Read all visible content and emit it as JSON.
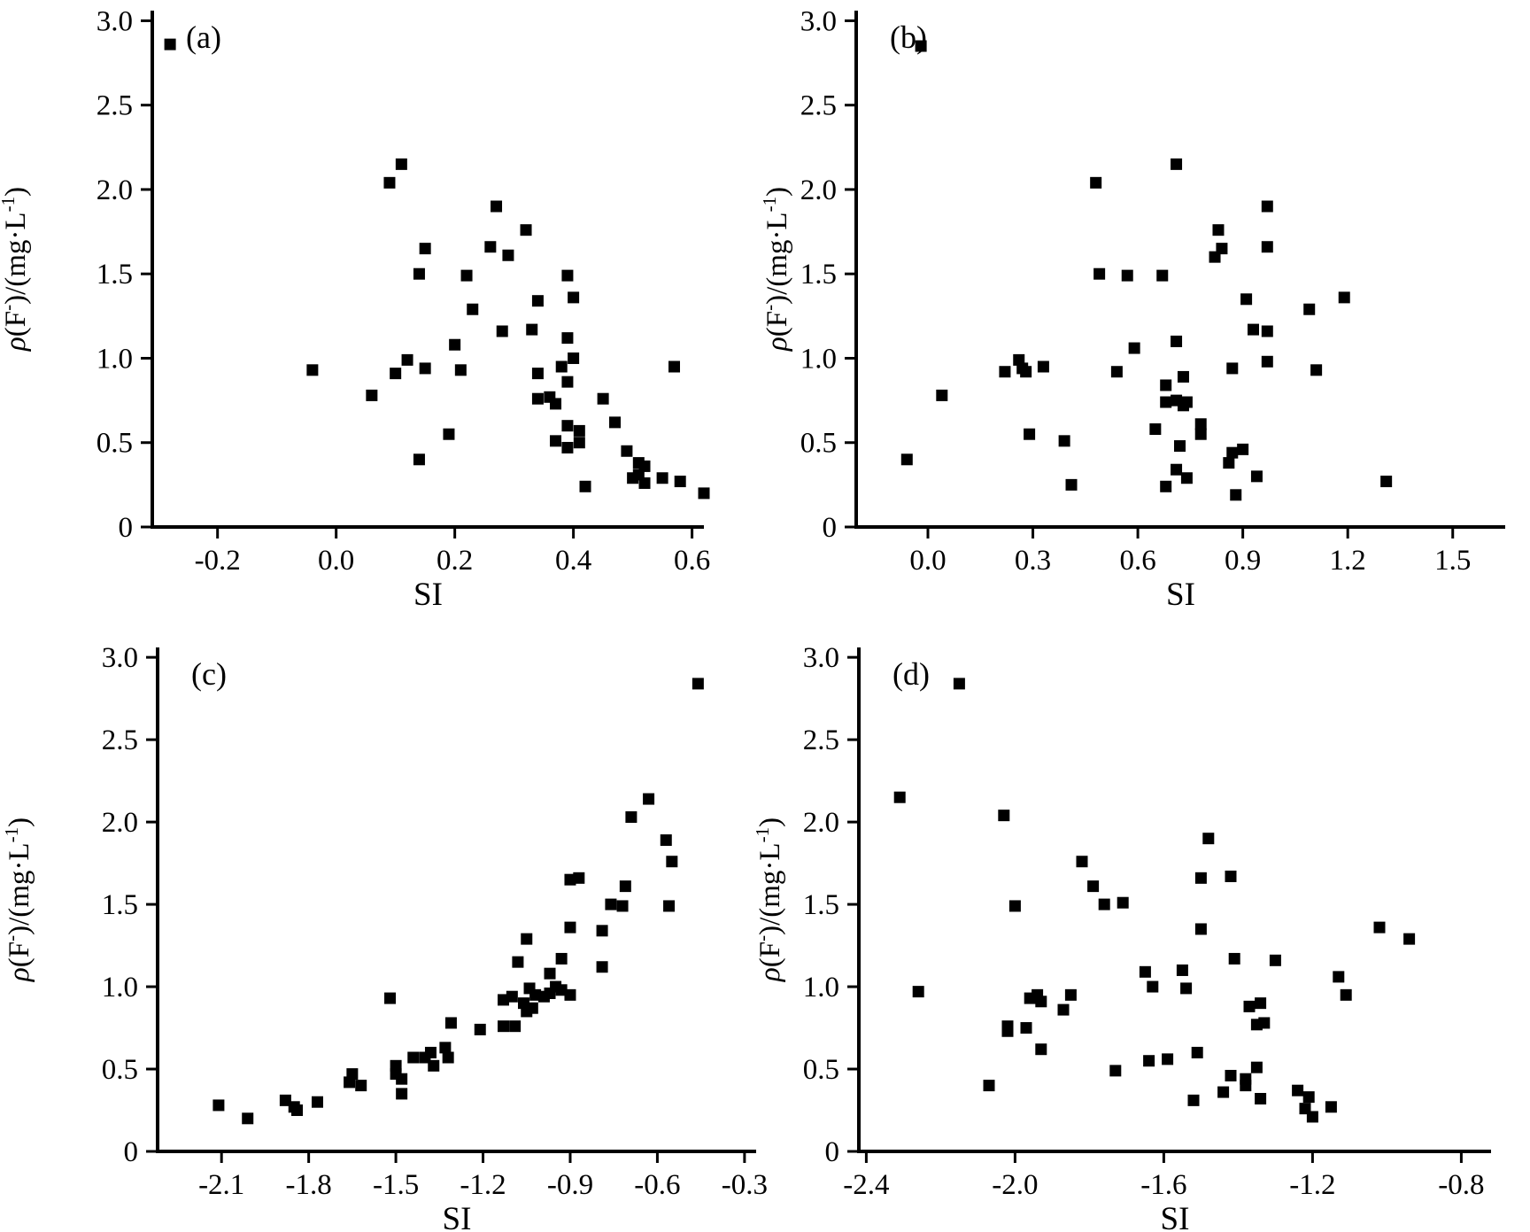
{
  "figure": {
    "background": "#ffffff",
    "ink_color": "#000000",
    "xlabel": "SI",
    "ylabel_text": "ρ(F⁻)/(mg·L⁻¹)",
    "ylabel_parts": {
      "rho": "ρ",
      "p1": "(F",
      "sup1": "-",
      "p2": ")/(mg·L",
      "sup2": "-1",
      "p3": ")"
    },
    "panel_labels": [
      "(a)",
      "(b)",
      "(c)",
      "(d)"
    ],
    "marker": {
      "shape": "square",
      "size": 13,
      "color": "#000000"
    }
  },
  "chart_data": [
    {
      "type": "scatter",
      "panel_label": "(a)",
      "xlabel": "SI",
      "ylabel": "ρ(F⁻)/(mg·L⁻¹)",
      "xlim": [
        -0.31,
        0.62
      ],
      "ylim": [
        0,
        3.06
      ],
      "grid": false,
      "xticks": {
        "values": [
          -0.2,
          0.0,
          0.2,
          0.4,
          0.6
        ],
        "labels": [
          "-0.2",
          "0.0",
          "0.2",
          "0.4",
          "0.6"
        ]
      },
      "yticks": {
        "values": [
          0,
          0.5,
          1.0,
          1.5,
          2.0,
          2.5,
          3.0
        ],
        "labels": [
          "0",
          "0.5",
          "1.0",
          "1.5",
          "2.0",
          "2.5",
          "3.0"
        ]
      },
      "points": [
        [
          -0.28,
          2.86
        ],
        [
          0.09,
          2.04
        ],
        [
          0.11,
          2.15
        ],
        [
          0.27,
          1.9
        ],
        [
          0.32,
          1.76
        ],
        [
          0.15,
          1.65
        ],
        [
          0.26,
          1.66
        ],
        [
          0.29,
          1.61
        ],
        [
          0.14,
          1.5
        ],
        [
          0.22,
          1.49
        ],
        [
          0.39,
          1.49
        ],
        [
          0.34,
          1.34
        ],
        [
          0.4,
          1.36
        ],
        [
          0.23,
          1.29
        ],
        [
          0.28,
          1.16
        ],
        [
          0.33,
          1.17
        ],
        [
          0.39,
          1.12
        ],
        [
          0.2,
          1.08
        ],
        [
          0.12,
          0.99
        ],
        [
          0.1,
          0.91
        ],
        [
          0.15,
          0.94
        ],
        [
          0.21,
          0.93
        ],
        [
          -0.04,
          0.93
        ],
        [
          0.06,
          0.78
        ],
        [
          0.34,
          0.91
        ],
        [
          0.38,
          0.95
        ],
        [
          0.4,
          1.0
        ],
        [
          0.39,
          0.86
        ],
        [
          0.57,
          0.95
        ],
        [
          0.34,
          0.76
        ],
        [
          0.36,
          0.77
        ],
        [
          0.37,
          0.73
        ],
        [
          0.45,
          0.76
        ],
        [
          0.47,
          0.62
        ],
        [
          0.19,
          0.55
        ],
        [
          0.14,
          0.4
        ],
        [
          0.39,
          0.6
        ],
        [
          0.41,
          0.57
        ],
        [
          0.37,
          0.51
        ],
        [
          0.39,
          0.47
        ],
        [
          0.41,
          0.5
        ],
        [
          0.49,
          0.45
        ],
        [
          0.51,
          0.38
        ],
        [
          0.52,
          0.36
        ],
        [
          0.51,
          0.31
        ],
        [
          0.5,
          0.29
        ],
        [
          0.52,
          0.26
        ],
        [
          0.55,
          0.29
        ],
        [
          0.42,
          0.24
        ],
        [
          0.58,
          0.27
        ],
        [
          0.62,
          0.2
        ]
      ]
    },
    {
      "type": "scatter",
      "panel_label": "(b)",
      "xlabel": "SI",
      "ylabel": "ρ(F⁻)/(mg·L⁻¹)",
      "xlim": [
        -0.205,
        1.65
      ],
      "ylim": [
        0,
        3.06
      ],
      "grid": false,
      "xticks": {
        "values": [
          0.0,
          0.3,
          0.6,
          0.9,
          1.2,
          1.5
        ],
        "labels": [
          "0.0",
          "0.3",
          "0.6",
          "0.9",
          "1.2",
          "1.5"
        ]
      },
      "yticks": {
        "values": [
          0,
          0.5,
          1.0,
          1.5,
          2.0,
          2.5,
          3.0
        ],
        "labels": [
          "0",
          "0.5",
          "1.0",
          "1.5",
          "2.0",
          "2.5",
          "3.0"
        ]
      },
      "points": [
        [
          -0.02,
          2.85
        ],
        [
          0.48,
          2.04
        ],
        [
          0.71,
          2.15
        ],
        [
          0.97,
          1.9
        ],
        [
          0.83,
          1.76
        ],
        [
          0.82,
          1.6
        ],
        [
          0.84,
          1.65
        ],
        [
          0.97,
          1.66
        ],
        [
          0.49,
          1.5
        ],
        [
          0.57,
          1.49
        ],
        [
          0.67,
          1.49
        ],
        [
          0.91,
          1.35
        ],
        [
          1.19,
          1.36
        ],
        [
          1.09,
          1.29
        ],
        [
          0.93,
          1.17
        ],
        [
          0.97,
          1.16
        ],
        [
          0.71,
          1.1
        ],
        [
          0.59,
          1.06
        ],
        [
          0.97,
          0.98
        ],
        [
          0.87,
          0.94
        ],
        [
          1.11,
          0.93
        ],
        [
          0.26,
          0.99
        ],
        [
          0.27,
          0.94
        ],
        [
          0.28,
          0.92
        ],
        [
          0.33,
          0.95
        ],
        [
          0.22,
          0.92
        ],
        [
          0.04,
          0.78
        ],
        [
          0.54,
          0.92
        ],
        [
          0.68,
          0.84
        ],
        [
          0.73,
          0.89
        ],
        [
          0.68,
          0.74
        ],
        [
          0.71,
          0.75
        ],
        [
          0.73,
          0.72
        ],
        [
          0.74,
          0.74
        ],
        [
          0.65,
          0.58
        ],
        [
          0.78,
          0.61
        ],
        [
          0.78,
          0.55
        ],
        [
          0.29,
          0.55
        ],
        [
          0.39,
          0.51
        ],
        [
          0.72,
          0.48
        ],
        [
          0.87,
          0.44
        ],
        [
          0.9,
          0.46
        ],
        [
          0.86,
          0.38
        ],
        [
          -0.06,
          0.4
        ],
        [
          0.71,
          0.34
        ],
        [
          0.74,
          0.29
        ],
        [
          0.94,
          0.3
        ],
        [
          0.68,
          0.24
        ],
        [
          0.41,
          0.25
        ],
        [
          0.88,
          0.19
        ],
        [
          1.31,
          0.27
        ]
      ]
    },
    {
      "type": "scatter",
      "panel_label": "(c)",
      "xlabel": "SI",
      "ylabel": "ρ(F⁻)/(mg·L⁻¹)",
      "xlim": [
        -2.32,
        -0.26
      ],
      "ylim": [
        0,
        3.06
      ],
      "grid": false,
      "xticks": {
        "values": [
          -2.1,
          -1.8,
          -1.5,
          -1.2,
          -0.9,
          -0.6,
          -0.3
        ],
        "labels": [
          "-2.1",
          "-1.8",
          "-1.5",
          "-1.2",
          "-0.9",
          "-0.6",
          "-0.3"
        ]
      },
      "yticks": {
        "values": [
          0,
          0.5,
          1.0,
          1.5,
          2.0,
          2.5,
          3.0
        ],
        "labels": [
          "0",
          "0.5",
          "1.0",
          "1.5",
          "2.0",
          "2.5",
          "3.0"
        ]
      },
      "points": [
        [
          -0.46,
          2.84
        ],
        [
          -0.63,
          2.14
        ],
        [
          -0.69,
          2.03
        ],
        [
          -0.57,
          1.89
        ],
        [
          -0.55,
          1.76
        ],
        [
          -0.71,
          1.61
        ],
        [
          -0.9,
          1.65
        ],
        [
          -0.87,
          1.66
        ],
        [
          -0.76,
          1.5
        ],
        [
          -0.72,
          1.49
        ],
        [
          -0.56,
          1.49
        ],
        [
          -0.9,
          1.36
        ],
        [
          -0.79,
          1.34
        ],
        [
          -1.05,
          1.29
        ],
        [
          -1.08,
          1.15
        ],
        [
          -0.93,
          1.17
        ],
        [
          -0.79,
          1.12
        ],
        [
          -0.97,
          1.08
        ],
        [
          -1.04,
          0.99
        ],
        [
          -1.02,
          0.95
        ],
        [
          -0.99,
          0.94
        ],
        [
          -0.97,
          0.96
        ],
        [
          -0.95,
          1.0
        ],
        [
          -0.93,
          0.98
        ],
        [
          -0.9,
          0.95
        ],
        [
          -1.52,
          0.93
        ],
        [
          -1.13,
          0.92
        ],
        [
          -1.1,
          0.94
        ],
        [
          -1.06,
          0.9
        ],
        [
          -1.05,
          0.85
        ],
        [
          -1.03,
          0.87
        ],
        [
          -1.31,
          0.78
        ],
        [
          -1.21,
          0.74
        ],
        [
          -1.13,
          0.76
        ],
        [
          -1.09,
          0.76
        ],
        [
          -1.33,
          0.63
        ],
        [
          -1.38,
          0.6
        ],
        [
          -1.4,
          0.57
        ],
        [
          -1.32,
          0.57
        ],
        [
          -1.37,
          0.52
        ],
        [
          -1.44,
          0.57
        ],
        [
          -1.5,
          0.52
        ],
        [
          -1.5,
          0.47
        ],
        [
          -1.48,
          0.44
        ],
        [
          -1.48,
          0.35
        ],
        [
          -1.65,
          0.47
        ],
        [
          -1.66,
          0.42
        ],
        [
          -1.62,
          0.4
        ],
        [
          -1.77,
          0.3
        ],
        [
          -1.88,
          0.31
        ],
        [
          -1.85,
          0.27
        ],
        [
          -1.84,
          0.25
        ],
        [
          -2.11,
          0.28
        ],
        [
          -2.01,
          0.2
        ]
      ]
    },
    {
      "type": "scatter",
      "panel_label": "(d)",
      "xlabel": "SI",
      "ylabel": "ρ(F⁻)/(mg·L⁻¹)",
      "xlim": [
        -2.42,
        -0.72
      ],
      "ylim": [
        0,
        3.06
      ],
      "grid": false,
      "xticks": {
        "values": [
          -2.4,
          -2.0,
          -1.6,
          -1.2,
          -0.8
        ],
        "labels": [
          "-2.4",
          "-2.0",
          "-1.6",
          "-1.2",
          "-0.8"
        ]
      },
      "yticks": {
        "values": [
          0,
          0.5,
          1.0,
          1.5,
          2.0,
          2.5,
          3.0
        ],
        "labels": [
          "0",
          "0.5",
          "1.0",
          "1.5",
          "2.0",
          "2.5",
          "3.0"
        ]
      },
      "points": [
        [
          -2.15,
          2.84
        ],
        [
          -2.31,
          2.15
        ],
        [
          -2.03,
          2.04
        ],
        [
          -1.48,
          1.9
        ],
        [
          -1.82,
          1.76
        ],
        [
          -1.79,
          1.61
        ],
        [
          -2.0,
          1.49
        ],
        [
          -1.76,
          1.5
        ],
        [
          -1.71,
          1.51
        ],
        [
          -1.5,
          1.66
        ],
        [
          -1.42,
          1.67
        ],
        [
          -1.5,
          1.35
        ],
        [
          -1.02,
          1.36
        ],
        [
          -0.94,
          1.29
        ],
        [
          -1.55,
          1.1
        ],
        [
          -1.41,
          1.17
        ],
        [
          -1.3,
          1.16
        ],
        [
          -1.65,
          1.09
        ],
        [
          -1.63,
          1.0
        ],
        [
          -1.54,
          0.99
        ],
        [
          -2.26,
          0.97
        ],
        [
          -1.96,
          0.93
        ],
        [
          -1.94,
          0.95
        ],
        [
          -1.93,
          0.91
        ],
        [
          -1.85,
          0.95
        ],
        [
          -1.37,
          0.88
        ],
        [
          -1.34,
          0.9
        ],
        [
          -1.13,
          1.06
        ],
        [
          -1.11,
          0.95
        ],
        [
          -1.87,
          0.86
        ],
        [
          -2.02,
          0.76
        ],
        [
          -2.02,
          0.73
        ],
        [
          -1.97,
          0.75
        ],
        [
          -1.35,
          0.77
        ],
        [
          -1.33,
          0.78
        ],
        [
          -1.93,
          0.62
        ],
        [
          -1.51,
          0.6
        ],
        [
          -1.64,
          0.55
        ],
        [
          -1.59,
          0.56
        ],
        [
          -1.73,
          0.49
        ],
        [
          -1.35,
          0.51
        ],
        [
          -1.42,
          0.46
        ],
        [
          -1.38,
          0.44
        ],
        [
          -1.38,
          0.4
        ],
        [
          -1.34,
          0.32
        ],
        [
          -1.44,
          0.36
        ],
        [
          -2.07,
          0.4
        ],
        [
          -1.52,
          0.31
        ],
        [
          -1.24,
          0.37
        ],
        [
          -1.22,
          0.26
        ],
        [
          -1.21,
          0.33
        ],
        [
          -1.15,
          0.27
        ],
        [
          -1.2,
          0.21
        ]
      ]
    }
  ]
}
